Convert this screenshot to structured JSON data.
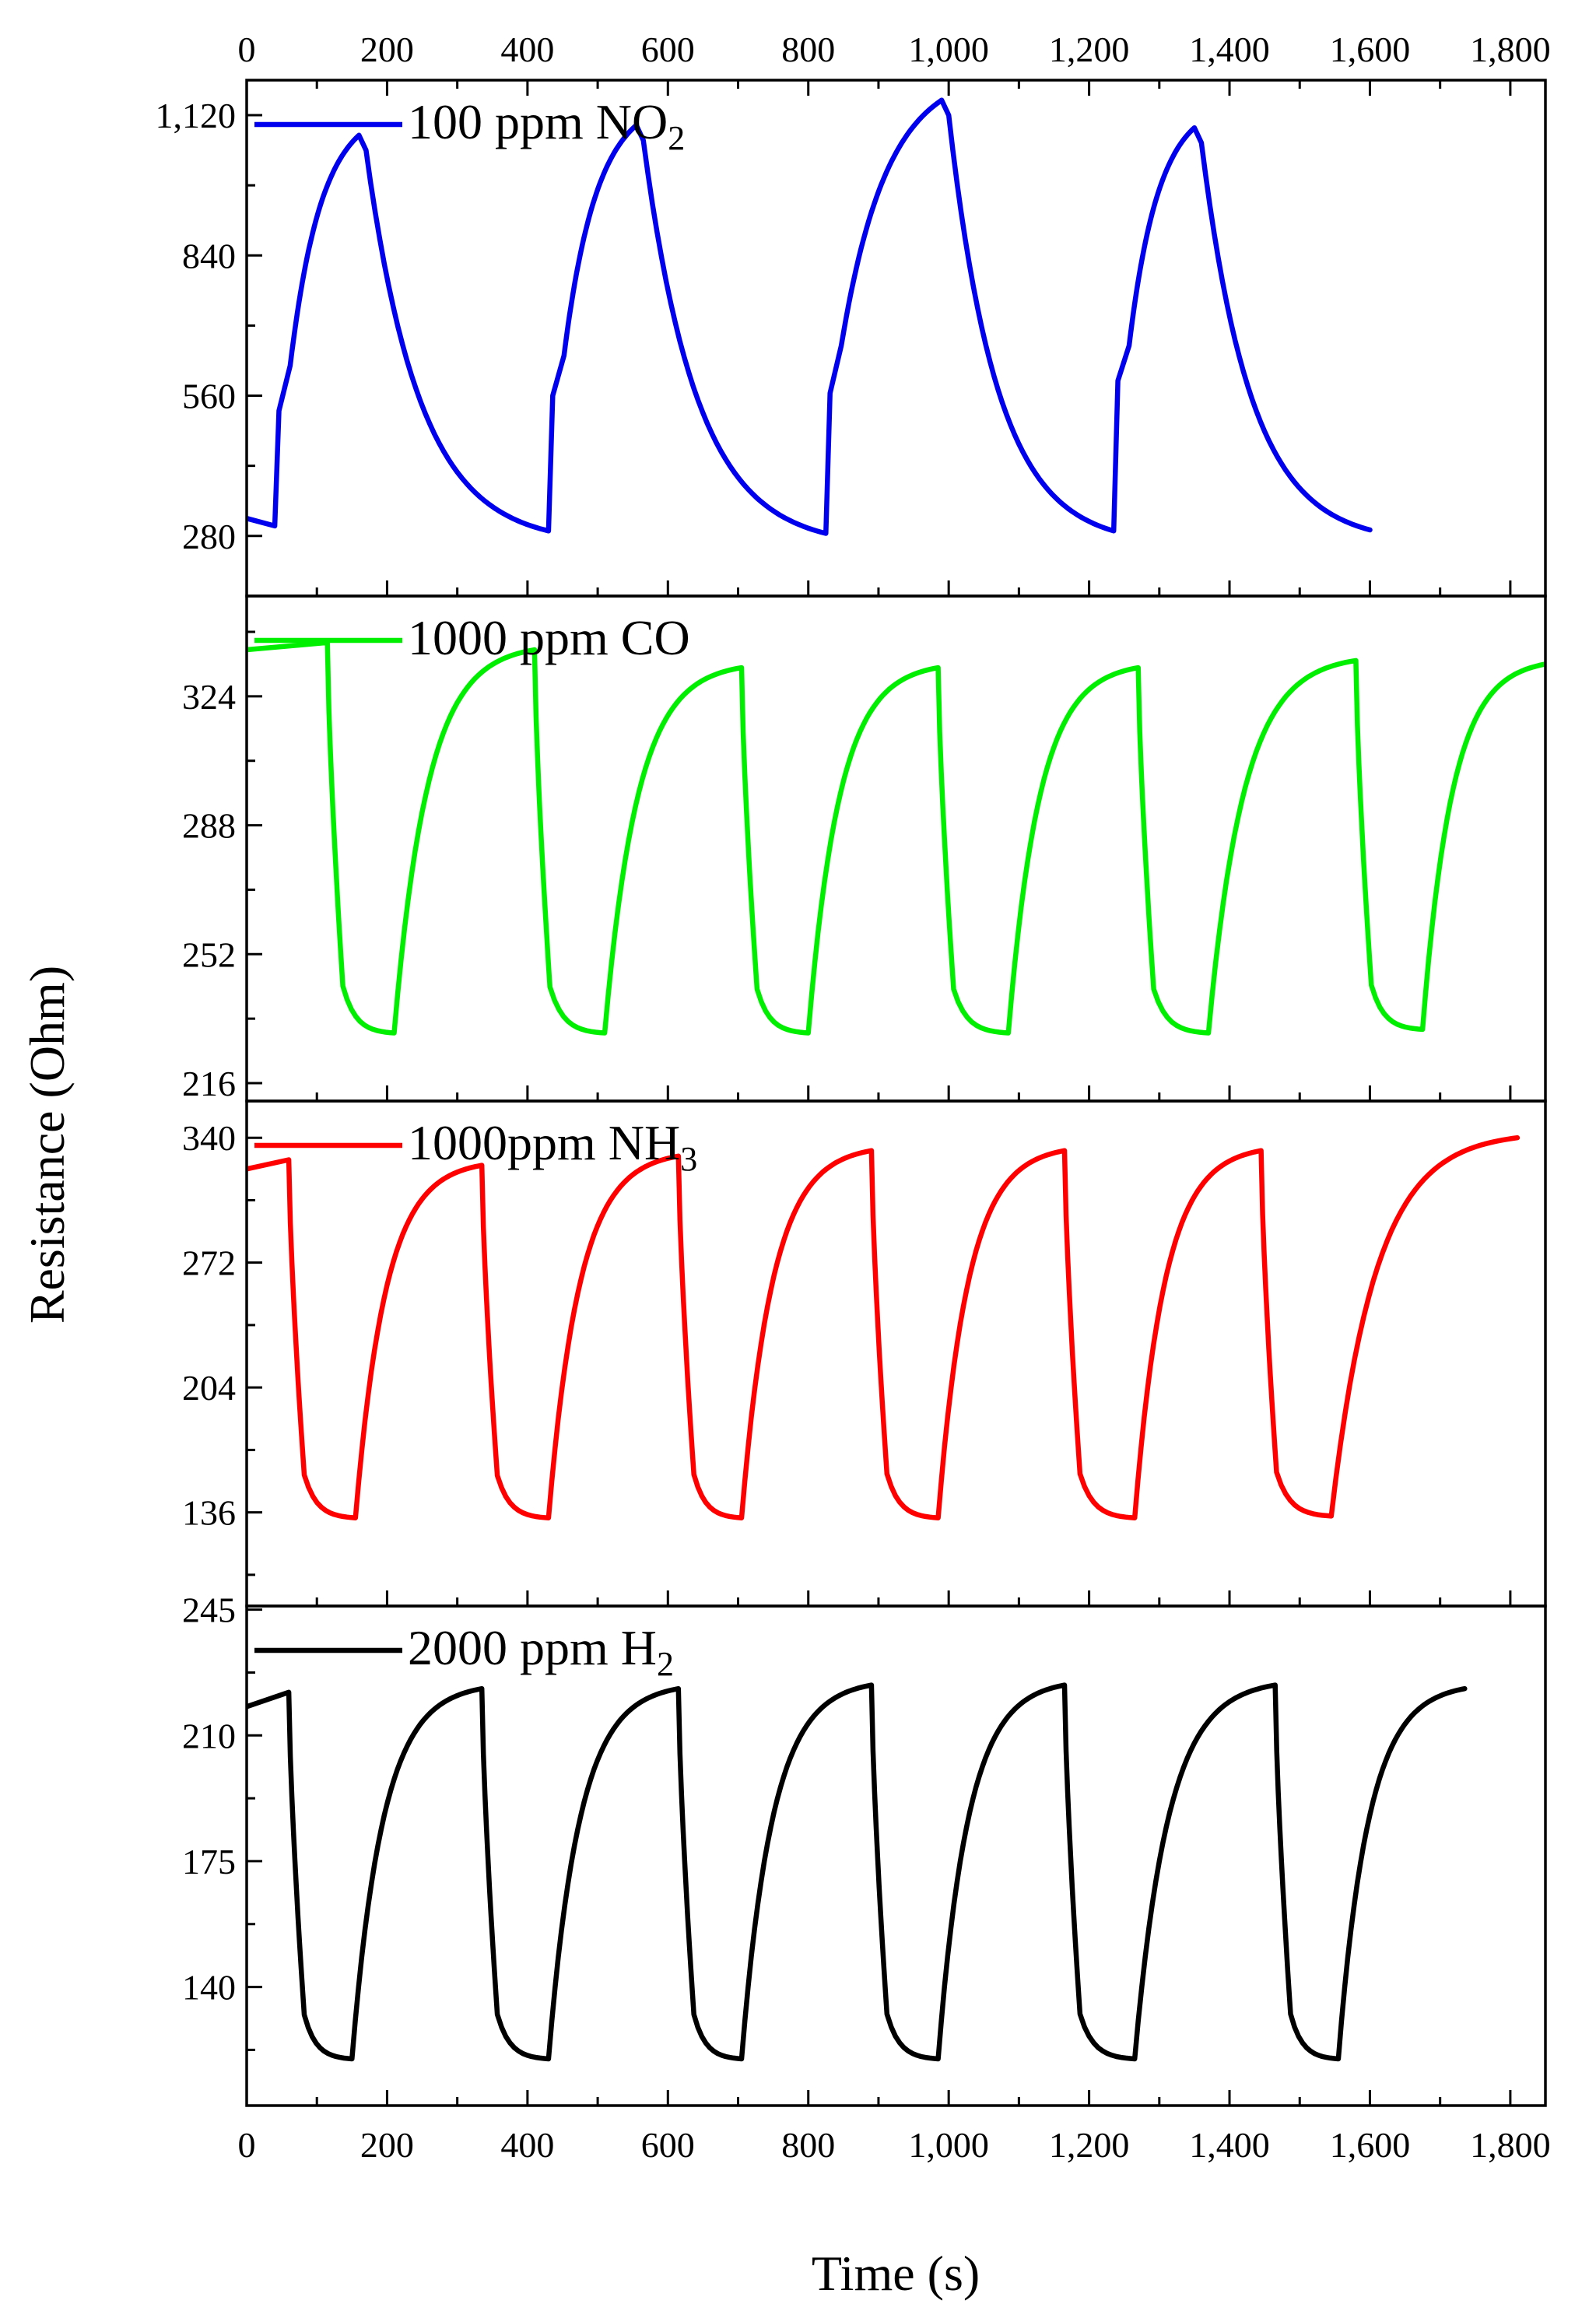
{
  "figure": {
    "xlabel": "Time (s)",
    "ylabel": "Resistance (Ohm)"
  },
  "chart_data": [
    {
      "type": "line",
      "panel": "NO2",
      "legend": {
        "label": "100 ppm NO",
        "subscript": "2"
      },
      "color": "#0000ee",
      "xlabel": "Time (s)",
      "ylabel": "Resistance (Ohm)",
      "xlim": [
        0,
        1850
      ],
      "ylim": [
        160,
        1190
      ],
      "xticks": [
        0,
        200,
        400,
        600,
        800,
        1000,
        1200,
        1400,
        1600,
        1800
      ],
      "xtick_labels": [
        "0",
        "200",
        "400",
        "600",
        "800",
        "1,000",
        "1,200",
        "1,400",
        "1,600",
        "1,800"
      ],
      "yticks": [
        280,
        560,
        840,
        1120
      ],
      "ytick_labels": [
        "280",
        "560",
        "840",
        "1,120"
      ],
      "series": [
        {
          "name": "100 ppm NO2",
          "kind": "ramp",
          "start": {
            "x": 0,
            "y": 315
          },
          "end_x": 1600,
          "cycles": [
            {
              "on": 40,
              "off": 160,
              "low": 300,
              "step": 530,
              "knee": 620,
              "peak": 1080
            },
            {
              "on": 430,
              "off": 555,
              "low": 290,
              "step": 560,
              "knee": 640,
              "peak": 1100
            },
            {
              "on": 825,
              "off": 990,
              "low": 285,
              "step": 565,
              "knee": 660,
              "peak": 1150
            },
            {
              "on": 1235,
              "off": 1350,
              "low": 290,
              "step": 590,
              "knee": 660,
              "peak": 1095
            }
          ],
          "final_y": 292
        }
      ]
    },
    {
      "type": "line",
      "panel": "CO",
      "legend": {
        "label": "1000 ppm CO",
        "subscript": ""
      },
      "color": "#00ee00",
      "xlabel": "Time (s)",
      "ylabel": "Resistance (Ohm)",
      "xlim": [
        0,
        1850
      ],
      "ylim": [
        211,
        352
      ],
      "xticks": [
        0,
        200,
        400,
        600,
        800,
        1000,
        1200,
        1400,
        1600,
        1800
      ],
      "yticks": [
        216,
        252,
        288,
        324
      ],
      "ytick_labels": [
        "216",
        "252",
        "288",
        "324"
      ],
      "series": [
        {
          "name": "1000 ppm CO",
          "kind": "drop",
          "start": {
            "x": 0,
            "y": 337
          },
          "end_x": 1850,
          "cycles": [
            {
              "on": 115,
              "off": 210,
              "high": 339,
              "low": 230
            },
            {
              "on": 410,
              "off": 510,
              "high": 337,
              "low": 230
            },
            {
              "on": 705,
              "off": 800,
              "high": 332,
              "low": 230
            },
            {
              "on": 985,
              "off": 1085,
              "high": 332,
              "low": 230
            },
            {
              "on": 1270,
              "off": 1370,
              "high": 332,
              "low": 230
            },
            {
              "on": 1580,
              "off": 1675,
              "high": 334,
              "low": 231
            }
          ],
          "final_y": 333
        }
      ]
    },
    {
      "type": "line",
      "panel": "NH3",
      "legend": {
        "label": "1000ppm NH",
        "subscript": "3"
      },
      "color": "#ff0000",
      "xlabel": "Time (s)",
      "ylabel": "Resistance (Ohm)",
      "xlim": [
        0,
        1850
      ],
      "ylim": [
        85,
        360
      ],
      "xticks": [
        0,
        200,
        400,
        600,
        800,
        1000,
        1200,
        1400,
        1600,
        1800
      ],
      "yticks": [
        136,
        204,
        272,
        340
      ],
      "ytick_labels": [
        "136",
        "204",
        "272",
        "340"
      ],
      "series": [
        {
          "name": "1000ppm NH3",
          "kind": "drop",
          "start": {
            "x": 0,
            "y": 323
          },
          "end_x": 1810,
          "cycles": [
            {
              "on": 60,
              "off": 155,
              "high": 328,
              "low": 133
            },
            {
              "on": 335,
              "off": 430,
              "high": 325,
              "low": 133
            },
            {
              "on": 615,
              "off": 705,
              "high": 330,
              "low": 133
            },
            {
              "on": 890,
              "off": 985,
              "high": 333,
              "low": 133
            },
            {
              "on": 1165,
              "off": 1265,
              "high": 333,
              "low": 133
            },
            {
              "on": 1445,
              "off": 1545,
              "high": 333,
              "low": 134
            }
          ],
          "final_y": 340
        }
      ]
    },
    {
      "type": "line",
      "panel": "H2",
      "legend": {
        "label": "2000 ppm H",
        "subscript": "2"
      },
      "color": "#000000",
      "xlabel": "Time (s)",
      "ylabel": "Resistance (Ohm)",
      "xlim": [
        0,
        1850
      ],
      "ylim": [
        107,
        246
      ],
      "xticks": [
        0,
        200,
        400,
        600,
        800,
        1000,
        1200,
        1400,
        1600,
        1800
      ],
      "xtick_labels": [
        "0",
        "200",
        "400",
        "600",
        "800",
        "1,000",
        "1,200",
        "1,400",
        "1,600",
        "1,800"
      ],
      "yticks": [
        140,
        175,
        210,
        245
      ],
      "ytick_labels": [
        "140",
        "175",
        "210",
        "245"
      ],
      "series": [
        {
          "name": "2000 ppm H2",
          "kind": "drop",
          "start": {
            "x": 0,
            "y": 218
          },
          "end_x": 1735,
          "cycles": [
            {
              "on": 60,
              "off": 150,
              "high": 222,
              "low": 120
            },
            {
              "on": 335,
              "off": 430,
              "high": 223,
              "low": 120
            },
            {
              "on": 615,
              "off": 705,
              "high": 223,
              "low": 120
            },
            {
              "on": 890,
              "off": 985,
              "high": 224,
              "low": 120
            },
            {
              "on": 1165,
              "off": 1265,
              "high": 224,
              "low": 120
            },
            {
              "on": 1465,
              "off": 1555,
              "high": 224,
              "low": 120
            }
          ],
          "final_y": 223
        }
      ]
    }
  ]
}
